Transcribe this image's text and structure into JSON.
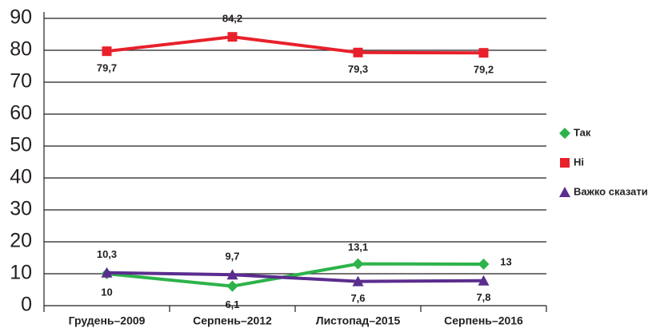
{
  "chart_data": {
    "type": "line",
    "categories": [
      "Грудень–2009",
      "Серпень–2012",
      "Листопад–2015",
      "Серпень–2016"
    ],
    "series": [
      {
        "name": "Так",
        "color": "#2db34a",
        "marker": "diamond",
        "values": [
          10,
          6.1,
          13.1,
          13
        ],
        "value_labels": [
          "10",
          "6,1",
          "13,1",
          "13"
        ]
      },
      {
        "name": "Ні",
        "color": "#e8202a",
        "marker": "square",
        "values": [
          79.7,
          84.2,
          79.3,
          79.2
        ],
        "value_labels": [
          "79,7",
          "84,2",
          "79,3",
          "79,2"
        ]
      },
      {
        "name": "Важко сказати",
        "color": "#5b2d8e",
        "marker": "triangle",
        "values": [
          10.3,
          9.7,
          7.6,
          7.8
        ],
        "value_labels": [
          "10,3",
          "9,7",
          "7,6",
          "7,8"
        ]
      }
    ],
    "ylim": [
      0,
      90
    ],
    "yticks": [
      0,
      10,
      20,
      30,
      40,
      50,
      60,
      70,
      80,
      90
    ],
    "grid": true,
    "legend": "right"
  }
}
